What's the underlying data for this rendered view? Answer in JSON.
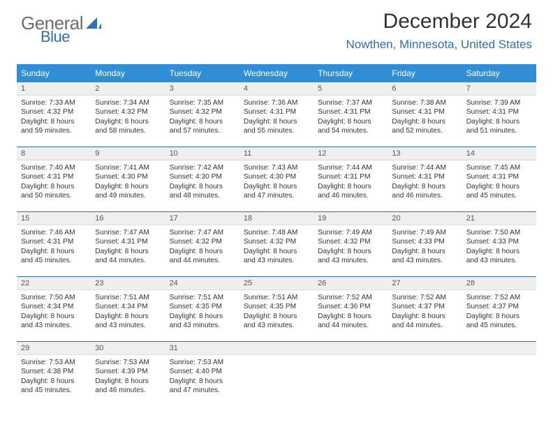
{
  "brand": {
    "part1": "General",
    "part2": "Blue"
  },
  "title": "December 2024",
  "location": "Nowthen, Minnesota, United States",
  "dayNames": [
    "Sunday",
    "Monday",
    "Tuesday",
    "Wednesday",
    "Thursday",
    "Friday",
    "Saturday"
  ],
  "colors": {
    "header_bg": "#2f8ed6",
    "accent": "#2f6fb4",
    "daynum_bg": "#efefef"
  },
  "days": [
    {
      "n": "1",
      "sunrise": "7:33 AM",
      "sunset": "4:32 PM",
      "daylight": "8 hours and 59 minutes."
    },
    {
      "n": "2",
      "sunrise": "7:34 AM",
      "sunset": "4:32 PM",
      "daylight": "8 hours and 58 minutes."
    },
    {
      "n": "3",
      "sunrise": "7:35 AM",
      "sunset": "4:32 PM",
      "daylight": "8 hours and 57 minutes."
    },
    {
      "n": "4",
      "sunrise": "7:36 AM",
      "sunset": "4:31 PM",
      "daylight": "8 hours and 55 minutes."
    },
    {
      "n": "5",
      "sunrise": "7:37 AM",
      "sunset": "4:31 PM",
      "daylight": "8 hours and 54 minutes."
    },
    {
      "n": "6",
      "sunrise": "7:38 AM",
      "sunset": "4:31 PM",
      "daylight": "8 hours and 52 minutes."
    },
    {
      "n": "7",
      "sunrise": "7:39 AM",
      "sunset": "4:31 PM",
      "daylight": "8 hours and 51 minutes."
    },
    {
      "n": "8",
      "sunrise": "7:40 AM",
      "sunset": "4:31 PM",
      "daylight": "8 hours and 50 minutes."
    },
    {
      "n": "9",
      "sunrise": "7:41 AM",
      "sunset": "4:30 PM",
      "daylight": "8 hours and 49 minutes."
    },
    {
      "n": "10",
      "sunrise": "7:42 AM",
      "sunset": "4:30 PM",
      "daylight": "8 hours and 48 minutes."
    },
    {
      "n": "11",
      "sunrise": "7:43 AM",
      "sunset": "4:30 PM",
      "daylight": "8 hours and 47 minutes."
    },
    {
      "n": "12",
      "sunrise": "7:44 AM",
      "sunset": "4:31 PM",
      "daylight": "8 hours and 46 minutes."
    },
    {
      "n": "13",
      "sunrise": "7:44 AM",
      "sunset": "4:31 PM",
      "daylight": "8 hours and 46 minutes."
    },
    {
      "n": "14",
      "sunrise": "7:45 AM",
      "sunset": "4:31 PM",
      "daylight": "8 hours and 45 minutes."
    },
    {
      "n": "15",
      "sunrise": "7:46 AM",
      "sunset": "4:31 PM",
      "daylight": "8 hours and 45 minutes."
    },
    {
      "n": "16",
      "sunrise": "7:47 AM",
      "sunset": "4:31 PM",
      "daylight": "8 hours and 44 minutes."
    },
    {
      "n": "17",
      "sunrise": "7:47 AM",
      "sunset": "4:32 PM",
      "daylight": "8 hours and 44 minutes."
    },
    {
      "n": "18",
      "sunrise": "7:48 AM",
      "sunset": "4:32 PM",
      "daylight": "8 hours and 43 minutes."
    },
    {
      "n": "19",
      "sunrise": "7:49 AM",
      "sunset": "4:32 PM",
      "daylight": "8 hours and 43 minutes."
    },
    {
      "n": "20",
      "sunrise": "7:49 AM",
      "sunset": "4:33 PM",
      "daylight": "8 hours and 43 minutes."
    },
    {
      "n": "21",
      "sunrise": "7:50 AM",
      "sunset": "4:33 PM",
      "daylight": "8 hours and 43 minutes."
    },
    {
      "n": "22",
      "sunrise": "7:50 AM",
      "sunset": "4:34 PM",
      "daylight": "8 hours and 43 minutes."
    },
    {
      "n": "23",
      "sunrise": "7:51 AM",
      "sunset": "4:34 PM",
      "daylight": "8 hours and 43 minutes."
    },
    {
      "n": "24",
      "sunrise": "7:51 AM",
      "sunset": "4:35 PM",
      "daylight": "8 hours and 43 minutes."
    },
    {
      "n": "25",
      "sunrise": "7:51 AM",
      "sunset": "4:35 PM",
      "daylight": "8 hours and 43 minutes."
    },
    {
      "n": "26",
      "sunrise": "7:52 AM",
      "sunset": "4:36 PM",
      "daylight": "8 hours and 44 minutes."
    },
    {
      "n": "27",
      "sunrise": "7:52 AM",
      "sunset": "4:37 PM",
      "daylight": "8 hours and 44 minutes."
    },
    {
      "n": "28",
      "sunrise": "7:52 AM",
      "sunset": "4:37 PM",
      "daylight": "8 hours and 45 minutes."
    },
    {
      "n": "29",
      "sunrise": "7:53 AM",
      "sunset": "4:38 PM",
      "daylight": "8 hours and 45 minutes."
    },
    {
      "n": "30",
      "sunrise": "7:53 AM",
      "sunset": "4:39 PM",
      "daylight": "8 hours and 46 minutes."
    },
    {
      "n": "31",
      "sunrise": "7:53 AM",
      "sunset": "4:40 PM",
      "daylight": "8 hours and 47 minutes."
    }
  ],
  "labels": {
    "sunrise": "Sunrise:",
    "sunset": "Sunset:",
    "daylight": "Daylight:"
  }
}
